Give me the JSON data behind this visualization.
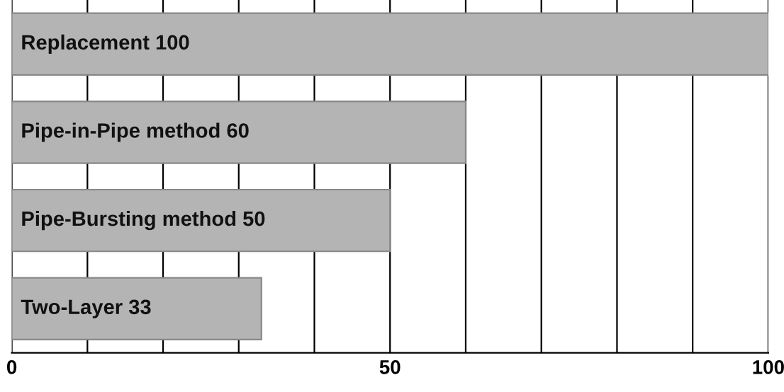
{
  "chart_data": {
    "type": "bar",
    "orientation": "horizontal",
    "categories": [
      "Replacement 100",
      "Pipe-in-Pipe method 60",
      "Pipe-Bursting method 50",
      "Two-Layer 33"
    ],
    "values": [
      100,
      60,
      50,
      33
    ],
    "color": "#b4b4b4",
    "xlim": [
      0,
      100
    ],
    "xticks": [
      0,
      {
        "value": 10,
        "label": null
      },
      {
        "value": 20,
        "label": null
      },
      {
        "value": 30,
        "label": null
      },
      {
        "value": 40,
        "label": null
      },
      50,
      {
        "value": 60,
        "label": null
      },
      {
        "value": 70,
        "label": null
      },
      {
        "value": 80,
        "label": null
      },
      {
        "value": 90,
        "label": null
      },
      100
    ],
    "grid": "x",
    "tick_labels": "x"
  }
}
